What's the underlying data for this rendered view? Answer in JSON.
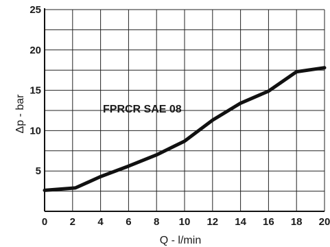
{
  "chart_data": {
    "type": "line",
    "title": "",
    "xlabel": "Q - l/min",
    "ylabel": "Δp - bar",
    "xlim": [
      0,
      20
    ],
    "ylim": [
      0,
      25
    ],
    "x_ticks": [
      "0",
      "2",
      "4",
      "6",
      "8",
      "10",
      "12",
      "14",
      "16",
      "18",
      "20"
    ],
    "y_ticks": [
      "5",
      "10",
      "15",
      "20",
      "25"
    ],
    "grid": true,
    "line_color": "#111111",
    "annotation": "FPRCR SAE 08",
    "series": [
      {
        "x": [
          0,
          2.2,
          4,
          6,
          8,
          10,
          12,
          14,
          16,
          18,
          20
        ],
        "y": [
          2.6,
          2.9,
          4.3,
          5.6,
          7.0,
          8.7,
          11.3,
          13.4,
          14.9,
          17.3,
          17.8
        ]
      }
    ]
  }
}
